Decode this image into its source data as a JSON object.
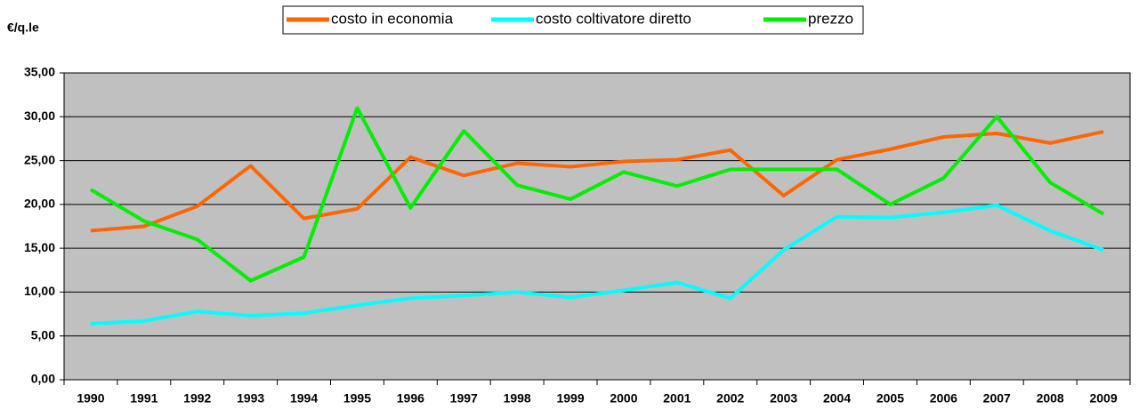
{
  "chart_data": {
    "type": "line",
    "y_label": "€/q.le",
    "categories": [
      "1990",
      "1991",
      "1992",
      "1993",
      "1994",
      "1995",
      "1996",
      "1997",
      "1998",
      "1999",
      "2000",
      "2001",
      "2002",
      "2003",
      "2004",
      "2005",
      "2006",
      "2007",
      "2008",
      "2009"
    ],
    "series": [
      {
        "name": "costo in economia",
        "color": "#ff6600",
        "values": [
          17.0,
          17.5,
          19.8,
          24.4,
          18.4,
          19.5,
          25.4,
          23.3,
          24.7,
          24.3,
          24.9,
          25.1,
          26.2,
          21.0,
          25.1,
          26.3,
          27.7,
          28.1,
          27.0,
          28.3
        ]
      },
      {
        "name": "costo coltivatore diretto",
        "color": "#00ffff",
        "values": [
          6.4,
          6.7,
          7.8,
          7.3,
          7.6,
          8.5,
          9.3,
          9.6,
          10.0,
          9.4,
          10.2,
          11.1,
          9.3,
          14.8,
          18.6,
          18.5,
          19.1,
          19.9,
          17.0,
          14.8
        ]
      },
      {
        "name": "prezzo",
        "color": "#00ee00",
        "values": [
          21.7,
          18.1,
          16.0,
          11.3,
          14.0,
          31.0,
          19.6,
          28.4,
          22.2,
          20.6,
          23.7,
          22.1,
          24.0,
          24.0,
          24.0,
          20.0,
          23.0,
          30.0,
          22.5,
          18.9
        ]
      }
    ],
    "ylim": [
      0,
      35
    ],
    "yticks": [
      {
        "value": 0,
        "label": "0,00"
      },
      {
        "value": 5,
        "label": "5,00"
      },
      {
        "value": 10,
        "label": "10,00"
      },
      {
        "value": 15,
        "label": "15,00"
      },
      {
        "value": 20,
        "label": "20,00"
      },
      {
        "value": 25,
        "label": "25,00"
      },
      {
        "value": 30,
        "label": "30,00"
      },
      {
        "value": 35,
        "label": "35,00"
      }
    ],
    "grid": true,
    "legend": "top"
  }
}
